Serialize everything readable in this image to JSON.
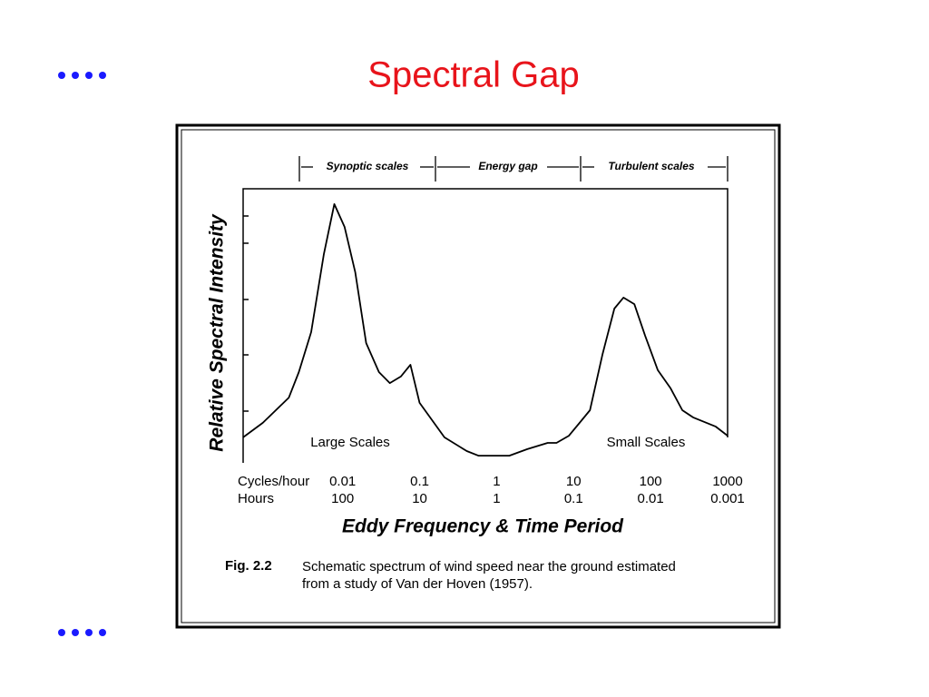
{
  "slide": {
    "title": "Spectral Gap"
  },
  "chart_data": {
    "type": "line",
    "xscale": "log",
    "color": "#000000",
    "ylabel": "Relative Spectral Intensity",
    "xlabel": "Eddy Frequency & Time Period",
    "xlim": [
      0.00051,
      1000
    ],
    "ylim": [
      0,
      10
    ],
    "x": [
      0.00051,
      0.00092,
      0.002,
      0.0027,
      0.0039,
      0.0057,
      0.0078,
      0.0106,
      0.0146,
      0.0202,
      0.0296,
      0.041,
      0.057,
      0.076,
      0.1,
      0.21,
      0.41,
      0.58,
      1.46,
      2.5,
      4.6,
      6.0,
      8.7,
      16.3,
      23.8,
      33.8,
      44.4,
      61.4,
      85,
      124,
      182,
      258,
      357,
      703,
      1000
    ],
    "values": [
      0.93,
      1.46,
      2.38,
      3.31,
      4.77,
      7.62,
      9.44,
      8.61,
      6.95,
      4.37,
      3.31,
      2.91,
      3.15,
      3.58,
      2.19,
      0.93,
      0.43,
      0.26,
      0.26,
      0.5,
      0.73,
      0.73,
      0.99,
      1.92,
      3.97,
      5.63,
      6.03,
      5.79,
      4.64,
      3.38,
      2.72,
      1.92,
      1.66,
      1.32,
      0.99
    ],
    "xtick_rows": [
      "Cycles/hour",
      "Hours"
    ],
    "xticks": [
      0.01,
      0.1,
      1,
      10,
      100,
      1000
    ],
    "hours_ticks": [
      100,
      10,
      1,
      0.1,
      0.01,
      0.001
    ],
    "bands": [
      "Synoptic scales",
      "Energy gap",
      "Turbulent scales"
    ],
    "annotations": [
      "Large Scales",
      "Small Scales"
    ]
  },
  "caption": {
    "label": "Fig. 2.2",
    "lines": [
      "Schematic spectrum of wind speed near the ground estimated",
      "from a study of Van der Hoven (1957)."
    ]
  }
}
